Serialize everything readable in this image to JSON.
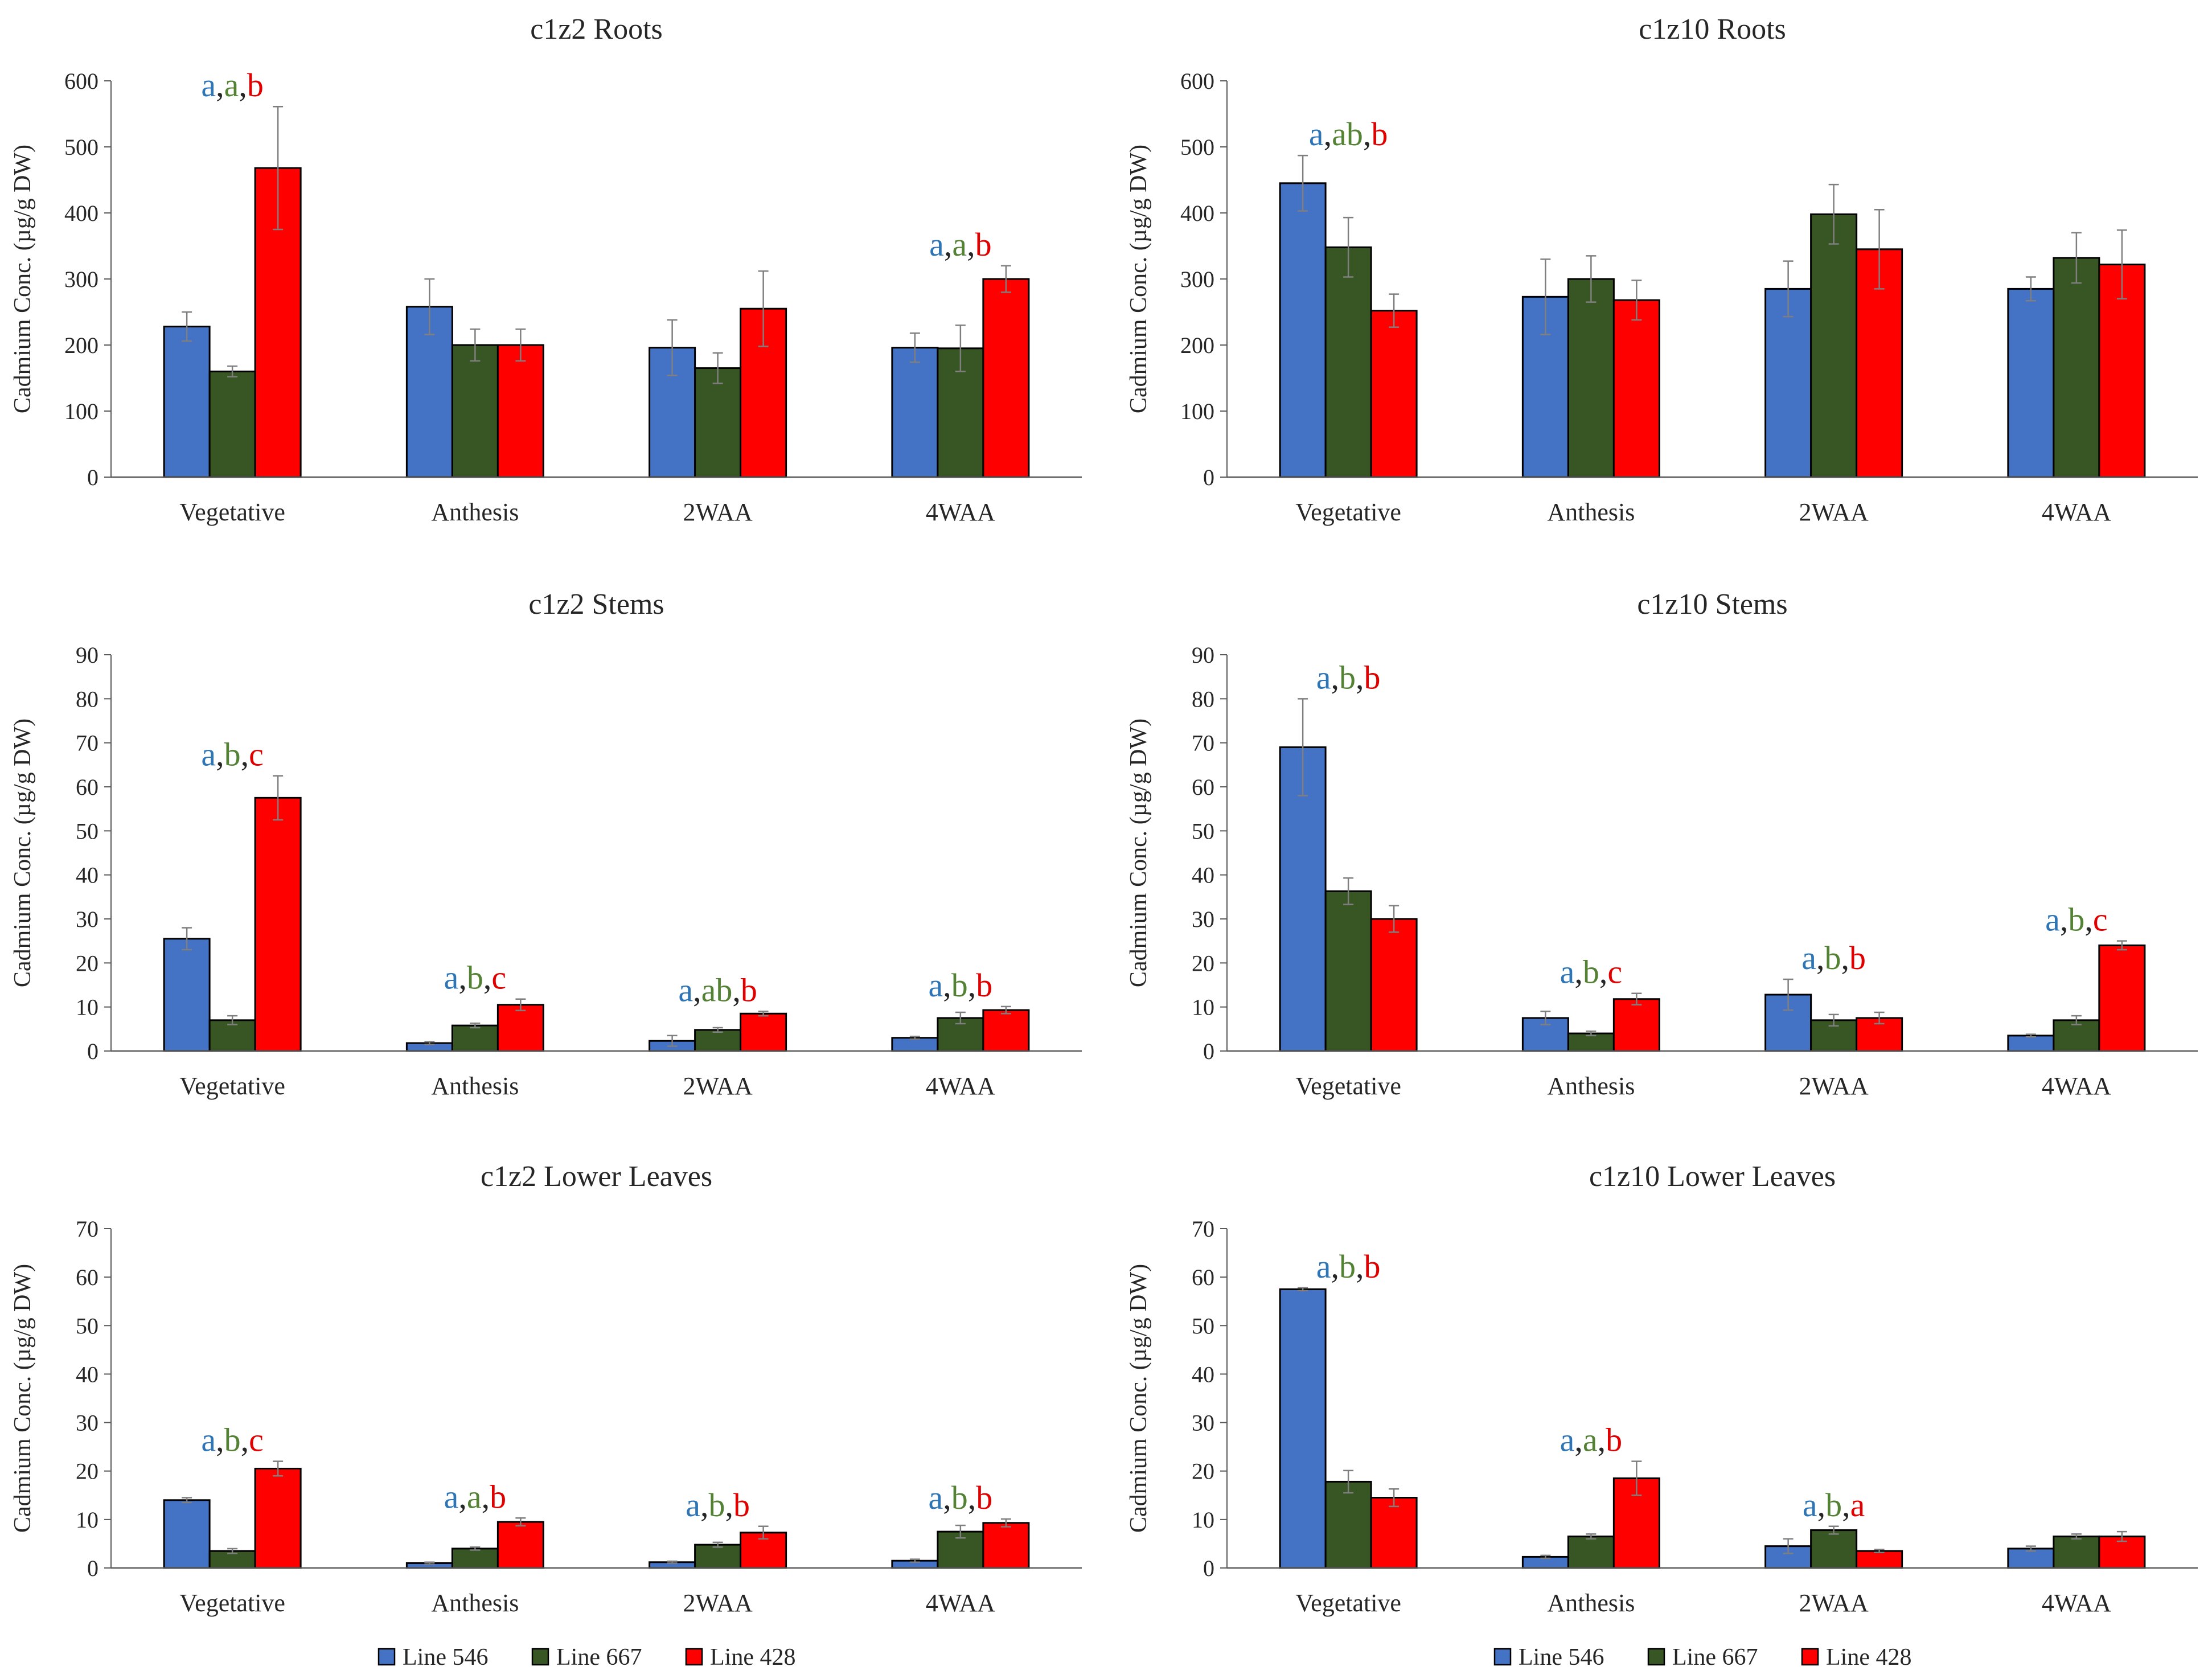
{
  "colors": {
    "line_546": "#4472C4",
    "line_667": "#375623",
    "line_428": "#FF0000",
    "sig_546": "#2E75B6",
    "sig_667": "#548235",
    "sig_428": "#E00000"
  },
  "legend": [
    "Line 546",
    "Line 667",
    "Line 428"
  ],
  "chart_data": [
    {
      "type": "bar",
      "title": "c1z2 Roots",
      "ylabel": "Cadmium Conc. (µg/g DW)",
      "ylim": [
        0,
        600
      ],
      "yticks": [
        0,
        100,
        200,
        300,
        400,
        500,
        600
      ],
      "categories": [
        "Vegetative",
        "Anthesis",
        "2WAA",
        "4WAA"
      ],
      "series": [
        {
          "name": "Line 546",
          "values": [
            228,
            258,
            196,
            196
          ],
          "errors": [
            22,
            42,
            42,
            22
          ]
        },
        {
          "name": "Line 667",
          "values": [
            160,
            200,
            165,
            195
          ],
          "errors": [
            8,
            24,
            23,
            35
          ]
        },
        {
          "name": "Line 428",
          "values": [
            468,
            200,
            255,
            300
          ],
          "errors": [
            93,
            24,
            57,
            20
          ]
        }
      ],
      "significance": [
        {
          "category": "Vegetative",
          "letters": [
            "a",
            "a",
            "b"
          ]
        },
        {
          "category": "4WAA",
          "letters": [
            "a",
            "a",
            "b"
          ]
        }
      ]
    },
    {
      "type": "bar",
      "title": "c1z10 Roots",
      "ylabel": "Cadmium Conc. (µg/g DW)",
      "ylim": [
        0,
        600
      ],
      "yticks": [
        0,
        100,
        200,
        300,
        400,
        500,
        600
      ],
      "categories": [
        "Vegetative",
        "Anthesis",
        "2WAA",
        "4WAA"
      ],
      "series": [
        {
          "name": "Line 546",
          "values": [
            445,
            273,
            285,
            285
          ],
          "errors": [
            42,
            57,
            42,
            18
          ]
        },
        {
          "name": "Line 667",
          "values": [
            348,
            300,
            398,
            332
          ],
          "errors": [
            45,
            35,
            45,
            38
          ]
        },
        {
          "name": "Line 428",
          "values": [
            252,
            268,
            345,
            322
          ],
          "errors": [
            25,
            30,
            60,
            52
          ]
        }
      ],
      "significance": [
        {
          "category": "Vegetative",
          "letters": [
            "a",
            "ab",
            "b"
          ]
        }
      ]
    },
    {
      "type": "bar",
      "title": "c1z2 Stems",
      "ylabel": "Cadmium Conc. (µg/g DW)",
      "ylim": [
        0,
        90
      ],
      "yticks": [
        0,
        10,
        20,
        30,
        40,
        50,
        60,
        70,
        80,
        90
      ],
      "categories": [
        "Vegetative",
        "Anthesis",
        "2WAA",
        "4WAA"
      ],
      "series": [
        {
          "name": "Line 546",
          "values": [
            25.5,
            1.8,
            2.3,
            3.0
          ],
          "errors": [
            2.5,
            0.3,
            1.2,
            0.3
          ]
        },
        {
          "name": "Line 667",
          "values": [
            7.0,
            5.8,
            4.8,
            7.5
          ],
          "errors": [
            1.0,
            0.5,
            0.5,
            1.3
          ]
        },
        {
          "name": "Line 428",
          "values": [
            57.5,
            10.5,
            8.5,
            9.3
          ],
          "errors": [
            5.0,
            1.3,
            0.5,
            0.8
          ]
        }
      ],
      "significance": [
        {
          "category": "Vegetative",
          "letters": [
            "a",
            "b",
            "c"
          ]
        },
        {
          "category": "Anthesis",
          "letters": [
            "a",
            "b",
            "c"
          ]
        },
        {
          "category": "2WAA",
          "letters": [
            "a",
            "ab",
            "b"
          ]
        },
        {
          "category": "4WAA",
          "letters": [
            "a",
            "b",
            "b"
          ]
        }
      ]
    },
    {
      "type": "bar",
      "title": "c1z10 Stems",
      "ylabel": "Cadmium Conc. (µg/g DW)",
      "ylim": [
        0,
        90
      ],
      "yticks": [
        0,
        10,
        20,
        30,
        40,
        50,
        60,
        70,
        80,
        90
      ],
      "categories": [
        "Vegetative",
        "Anthesis",
        "2WAA",
        "4WAA"
      ],
      "series": [
        {
          "name": "Line 546",
          "values": [
            69.0,
            7.5,
            12.8,
            3.5
          ],
          "errors": [
            11.0,
            1.5,
            3.5,
            0.3
          ]
        },
        {
          "name": "Line 667",
          "values": [
            36.3,
            4.0,
            7.0,
            7.0
          ],
          "errors": [
            3.0,
            0.5,
            1.3,
            1.0
          ]
        },
        {
          "name": "Line 428",
          "values": [
            30.0,
            11.8,
            7.5,
            24.0
          ],
          "errors": [
            3.0,
            1.3,
            1.3,
            1.0
          ]
        }
      ],
      "significance": [
        {
          "category": "Vegetative",
          "letters": [
            "a",
            "b",
            "b"
          ]
        },
        {
          "category": "Anthesis",
          "letters": [
            "a",
            "b",
            "c"
          ]
        },
        {
          "category": "2WAA",
          "letters": [
            "a",
            "b",
            "b"
          ]
        },
        {
          "category": "4WAA",
          "letters": [
            "a",
            "b",
            "c"
          ]
        }
      ]
    },
    {
      "type": "bar",
      "title": "c1z2 Lower Leaves",
      "ylabel": "Cadmium Conc. (µg/g DW)",
      "ylim": [
        0,
        70
      ],
      "yticks": [
        0,
        10,
        20,
        30,
        40,
        50,
        60,
        70
      ],
      "categories": [
        "Vegetative",
        "Anthesis",
        "2WAA",
        "4WAA"
      ],
      "series": [
        {
          "name": "Line 546",
          "values": [
            14.0,
            1.0,
            1.2,
            1.5
          ],
          "errors": [
            0.5,
            0.2,
            0.2,
            0.3
          ]
        },
        {
          "name": "Line 667",
          "values": [
            3.5,
            4.0,
            4.8,
            7.5
          ],
          "errors": [
            0.5,
            0.3,
            0.5,
            1.3
          ]
        },
        {
          "name": "Line 428",
          "values": [
            20.5,
            9.5,
            7.3,
            9.3
          ],
          "errors": [
            1.5,
            0.8,
            1.3,
            0.8
          ]
        }
      ],
      "significance": [
        {
          "category": "Vegetative",
          "letters": [
            "a",
            "b",
            "c"
          ]
        },
        {
          "category": "Anthesis",
          "letters": [
            "a",
            "a",
            "b"
          ]
        },
        {
          "category": "2WAA",
          "letters": [
            "a",
            "b",
            "b"
          ]
        },
        {
          "category": "4WAA",
          "letters": [
            "a",
            "b",
            "b"
          ]
        }
      ]
    },
    {
      "type": "bar",
      "title": "c1z10 Lower Leaves",
      "ylabel": "Cadmium Conc. (µg/g DW)",
      "ylim": [
        0,
        70
      ],
      "yticks": [
        0,
        10,
        20,
        30,
        40,
        50,
        60,
        70
      ],
      "categories": [
        "Vegetative",
        "Anthesis",
        "2WAA",
        "4WAA"
      ],
      "series": [
        {
          "name": "Line 546",
          "values": [
            57.5,
            2.3,
            4.5,
            4.0
          ],
          "errors": [
            0.3,
            0.3,
            1.5,
            0.5
          ]
        },
        {
          "name": "Line 667",
          "values": [
            17.8,
            6.5,
            7.8,
            6.5
          ],
          "errors": [
            2.3,
            0.5,
            0.8,
            0.5
          ]
        },
        {
          "name": "Line 428",
          "values": [
            14.5,
            18.5,
            3.5,
            6.5
          ],
          "errors": [
            1.8,
            3.5,
            0.3,
            1.0
          ]
        }
      ],
      "significance": [
        {
          "category": "Vegetative",
          "letters": [
            "a",
            "b",
            "b"
          ]
        },
        {
          "category": "Anthesis",
          "letters": [
            "a",
            "a",
            "b"
          ]
        },
        {
          "category": "2WAA",
          "letters": [
            "a",
            "b",
            "a"
          ]
        }
      ]
    }
  ]
}
